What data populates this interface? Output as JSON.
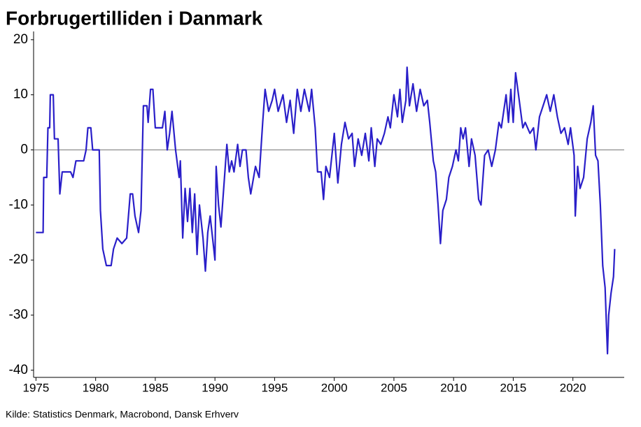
{
  "chart_data": {
    "type": "line",
    "title": "Forbrugertilliden i Danmark",
    "source": "Kilde: Statistics Denmark, Macrobond, Dansk Erhverv",
    "x": [
      1975.0,
      1975.6,
      1975.65,
      1975.9,
      1976.0,
      1976.15,
      1976.2,
      1976.45,
      1976.55,
      1976.85,
      1977.0,
      1977.2,
      1977.9,
      1978.1,
      1978.35,
      1979.0,
      1979.2,
      1979.35,
      1979.6,
      1979.75,
      1980.3,
      1980.4,
      1980.6,
      1980.9,
      1981.3,
      1981.5,
      1981.8,
      1982.2,
      1982.6,
      1982.9,
      1983.1,
      1983.3,
      1983.6,
      1983.8,
      1984.0,
      1984.3,
      1984.4,
      1984.6,
      1984.8,
      1985.0,
      1985.6,
      1985.8,
      1986.0,
      1986.2,
      1986.4,
      1986.7,
      1987.0,
      1987.1,
      1987.3,
      1987.5,
      1987.7,
      1987.9,
      1988.1,
      1988.3,
      1988.5,
      1988.7,
      1989.0,
      1989.2,
      1989.4,
      1989.6,
      1989.9,
      1990.0,
      1990.1,
      1990.3,
      1990.5,
      1990.7,
      1991.0,
      1991.2,
      1991.4,
      1991.6,
      1991.9,
      1992.1,
      1992.3,
      1992.6,
      1992.8,
      1993.0,
      1993.4,
      1993.7,
      1994.0,
      1994.2,
      1994.5,
      1994.8,
      1995.0,
      1995.3,
      1995.7,
      1996.0,
      1996.3,
      1996.6,
      1996.9,
      1997.2,
      1997.5,
      1997.9,
      1998.1,
      1998.4,
      1998.6,
      1998.9,
      1999.1,
      1999.3,
      1999.6,
      1999.8,
      2000.0,
      2000.3,
      2000.6,
      2000.9,
      2001.2,
      2001.5,
      2001.7,
      2002.0,
      2002.3,
      2002.6,
      2002.9,
      2003.1,
      2003.4,
      2003.6,
      2003.9,
      2004.2,
      2004.5,
      2004.7,
      2005.0,
      2005.3,
      2005.5,
      2005.7,
      2006.0,
      2006.1,
      2006.3,
      2006.6,
      2006.9,
      2007.2,
      2007.5,
      2007.8,
      2008.0,
      2008.3,
      2008.5,
      2008.7,
      2008.9,
      2009.1,
      2009.4,
      2009.6,
      2009.9,
      2010.2,
      2010.4,
      2010.6,
      2010.8,
      2011.0,
      2011.3,
      2011.5,
      2011.8,
      2012.1,
      2012.3,
      2012.6,
      2012.9,
      2013.2,
      2013.5,
      2013.8,
      2014.0,
      2014.4,
      2014.6,
      2014.8,
      2015.0,
      2015.2,
      2015.5,
      2015.8,
      2016.0,
      2016.4,
      2016.7,
      2016.9,
      2017.2,
      2017.5,
      2017.8,
      2018.1,
      2018.4,
      2018.7,
      2019.0,
      2019.3,
      2019.6,
      2019.8,
      2020.1,
      2020.2,
      2020.4,
      2020.6,
      2020.9,
      2021.2,
      2021.5,
      2021.7,
      2021.9,
      2022.1,
      2022.3,
      2022.5,
      2022.7,
      2022.9,
      2023.0,
      2023.2,
      2023.4,
      2023.5
    ],
    "series": [
      {
        "color": "#2a1fc9",
        "values": [
          -15,
          -15,
          -5,
          -5,
          4,
          4,
          10,
          10,
          2,
          2,
          -8,
          -4,
          -4,
          -5,
          -2,
          -2,
          0,
          4,
          4,
          0,
          0,
          -11,
          -18,
          -21,
          -21,
          -18,
          -16,
          -17,
          -16,
          -8,
          -8,
          -12,
          -15,
          -11,
          8,
          8,
          5,
          11,
          11,
          4,
          4,
          7,
          0,
          3,
          7,
          0,
          -5,
          -2,
          -16,
          -7,
          -13,
          -7,
          -15,
          -8,
          -19,
          -10,
          -16,
          -22,
          -15,
          -12,
          -18,
          -20,
          -3,
          -10,
          -14,
          -8,
          1,
          -4,
          -2,
          -4,
          1,
          -3,
          0,
          0,
          -5,
          -8,
          -3,
          -5,
          5,
          11,
          7,
          9,
          11,
          7,
          10,
          5,
          9,
          3,
          11,
          7,
          11,
          7,
          11,
          4,
          -4,
          -4,
          -9,
          -3,
          -5,
          -1,
          3,
          -6,
          1,
          5,
          2,
          3,
          -3,
          2,
          -1,
          3,
          -2,
          4,
          -3,
          2,
          1,
          3,
          6,
          4,
          10,
          6,
          11,
          5,
          9,
          15,
          8,
          12,
          7,
          11,
          8,
          9,
          5,
          -2,
          -4,
          -10,
          -17,
          -11,
          -9,
          -5,
          -3,
          0,
          -2,
          4,
          2,
          4,
          -3,
          2,
          -1,
          -9,
          -10,
          -1,
          0,
          -3,
          0,
          5,
          4,
          10,
          5,
          11,
          5,
          14,
          9,
          4,
          5,
          3,
          4,
          0,
          6,
          8,
          10,
          7,
          10,
          6,
          3,
          4,
          1,
          4,
          -1,
          -12,
          -3,
          -7,
          -5,
          2,
          5,
          8,
          -1,
          -2,
          -10,
          -21,
          -25,
          -37,
          -30,
          -26,
          -23,
          -18
        ]
      }
    ],
    "xlim": [
      1974.8,
      2024.3
    ],
    "ylim": [
      -41.3,
      21.5
    ],
    "xticks": [
      1975,
      1980,
      1985,
      1990,
      1995,
      2000,
      2005,
      2010,
      2015,
      2020
    ],
    "yticks": [
      -40,
      -30,
      -20,
      -10,
      0,
      10,
      20
    ]
  }
}
